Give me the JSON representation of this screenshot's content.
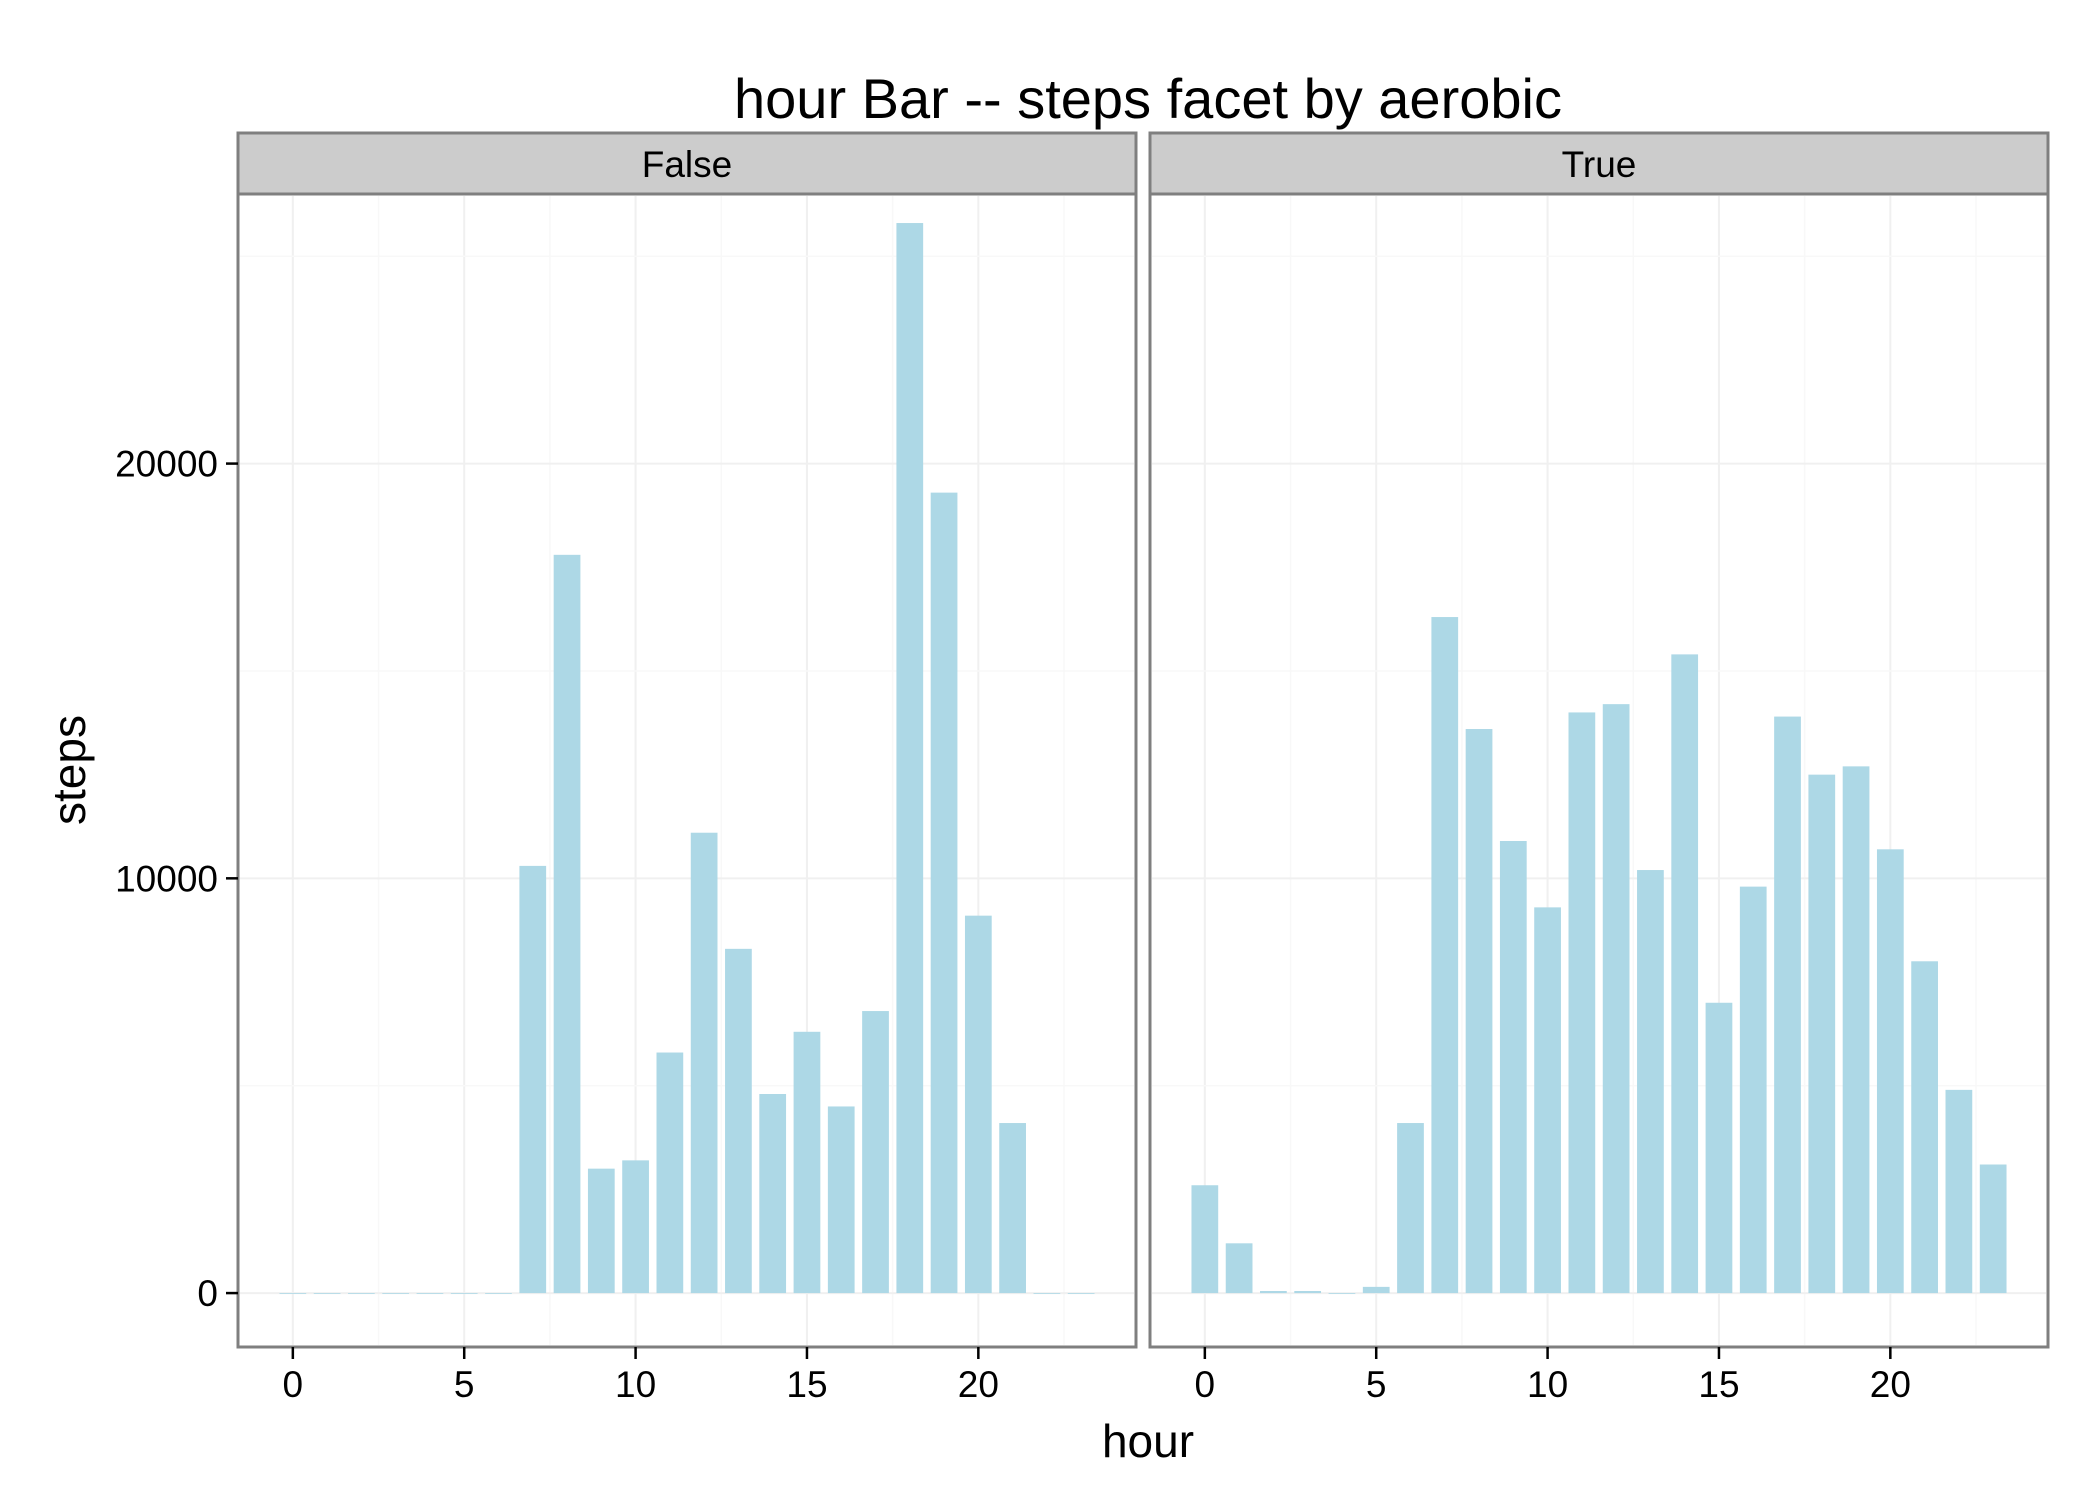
{
  "chart_data": {
    "type": "bar",
    "title": "hour  Bar --  steps  facet by  aerobic",
    "xlabel": "hour",
    "ylabel": "steps",
    "bar_color": "#add8e6",
    "xlim": [
      -1.6,
      24.6
    ],
    "ylim": [
      -1300,
      26500
    ],
    "x_ticks": [
      0,
      5,
      10,
      15,
      20
    ],
    "y_ticks": [
      0,
      10000,
      20000
    ],
    "grid": true,
    "facets": [
      {
        "label": "False",
        "x": [
          0,
          1,
          2,
          3,
          4,
          5,
          6,
          7,
          8,
          9,
          10,
          11,
          12,
          13,
          14,
          15,
          16,
          17,
          18,
          19,
          20,
          21,
          22,
          23
        ],
        "values": [
          0,
          0,
          0,
          0,
          0,
          0,
          0,
          10300,
          17800,
          3000,
          3200,
          5800,
          11100,
          8300,
          4800,
          6300,
          4500,
          6800,
          25800,
          19300,
          9100,
          4100,
          0,
          0
        ]
      },
      {
        "label": "True",
        "x": [
          0,
          1,
          2,
          3,
          4,
          5,
          6,
          7,
          8,
          9,
          10,
          11,
          12,
          13,
          14,
          15,
          16,
          17,
          18,
          19,
          20,
          21,
          22,
          23
        ],
        "values": [
          2600,
          1200,
          50,
          50,
          0,
          150,
          4100,
          16300,
          13600,
          10900,
          9300,
          14000,
          14200,
          10200,
          15400,
          7000,
          9800,
          13900,
          12500,
          12700,
          10700,
          8000,
          4900,
          3100
        ]
      }
    ]
  }
}
